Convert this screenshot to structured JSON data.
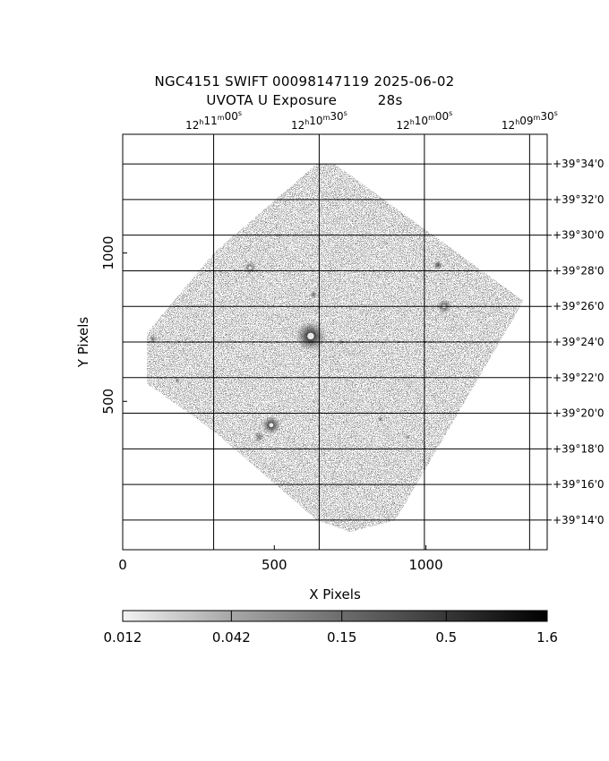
{
  "image": {
    "title_line1": "NGC4151 SWIFT 00098147119 2025-06-02",
    "title_line2": "UVOTA U Exposure         28s",
    "x_axis": {
      "label": "X Pixels",
      "range": [
        0,
        1400
      ],
      "ticks": [
        {
          "value": 0,
          "label": "0"
        },
        {
          "value": 500,
          "label": "500"
        },
        {
          "value": 1000,
          "label": "1000"
        }
      ]
    },
    "y_axis": {
      "label": "Y Pixels",
      "range": [
        0,
        1400
      ],
      "ticks": [
        {
          "value": 500,
          "label": "500"
        },
        {
          "value": 1000,
          "label": "1000"
        }
      ]
    },
    "ra_grid": [
      {
        "x": 300,
        "h": "12",
        "m": "11",
        "s": "00"
      },
      {
        "x": 648,
        "h": "12",
        "m": "10",
        "s": "30"
      },
      {
        "x": 995,
        "h": "12",
        "m": "10",
        "s": "00"
      },
      {
        "x": 1342,
        "h": "12",
        "m": "09",
        "s": "30"
      }
    ],
    "dec_grid": [
      {
        "y": 1300,
        "label": "+39°34'0"
      },
      {
        "y": 1180,
        "label": "+39°32'0"
      },
      {
        "y": 1060,
        "label": "+39°30'0"
      },
      {
        "y": 940,
        "label": "+39°28'0"
      },
      {
        "y": 820,
        "label": "+39°26'0"
      },
      {
        "y": 700,
        "label": "+39°24'0"
      },
      {
        "y": 580,
        "label": "+39°22'0"
      },
      {
        "y": 460,
        "label": "+39°20'0"
      },
      {
        "y": 340,
        "label": "+39°18'0"
      },
      {
        "y": 220,
        "label": "+39°16'0"
      },
      {
        "y": 100,
        "label": "+39°14'0"
      }
    ],
    "footprint": [
      [
        640,
        1300
      ],
      [
        700,
        1300
      ],
      [
        1320,
        840
      ],
      [
        1300,
        800
      ],
      [
        900,
        100
      ],
      [
        750,
        60
      ],
      [
        640,
        100
      ],
      [
        300,
        400
      ],
      [
        80,
        560
      ],
      [
        80,
        730
      ],
      [
        300,
        1000
      ]
    ],
    "sources": [
      {
        "x": 620,
        "y": 720,
        "r": 32,
        "peak": 1.0
      },
      {
        "x": 490,
        "y": 420,
        "r": 20,
        "peak": 0.9
      },
      {
        "x": 1060,
        "y": 820,
        "r": 16,
        "peak": 0.7
      },
      {
        "x": 420,
        "y": 950,
        "r": 14,
        "peak": 0.6
      },
      {
        "x": 1040,
        "y": 960,
        "r": 10,
        "peak": 0.7
      },
      {
        "x": 630,
        "y": 860,
        "r": 8,
        "peak": 0.6
      },
      {
        "x": 450,
        "y": 380,
        "r": 12,
        "peak": 0.5
      },
      {
        "x": 100,
        "y": 710,
        "r": 9,
        "peak": 0.5
      },
      {
        "x": 850,
        "y": 440,
        "r": 6,
        "peak": 0.6
      },
      {
        "x": 940,
        "y": 380,
        "r": 5,
        "peak": 0.5
      },
      {
        "x": 720,
        "y": 700,
        "r": 4,
        "peak": 0.5
      },
      {
        "x": 180,
        "y": 570,
        "r": 4,
        "peak": 0.5
      }
    ],
    "colorbar": {
      "ticks": [
        {
          "value": 0.012,
          "label": "0.012"
        },
        {
          "value": 0.042,
          "label": "0.042"
        },
        {
          "value": 0.15,
          "label": "0.15"
        },
        {
          "value": 0.5,
          "label": "0.5"
        },
        {
          "value": 1.6,
          "label": "1.6"
        }
      ],
      "min": 0.012,
      "max": 1.6
    }
  }
}
